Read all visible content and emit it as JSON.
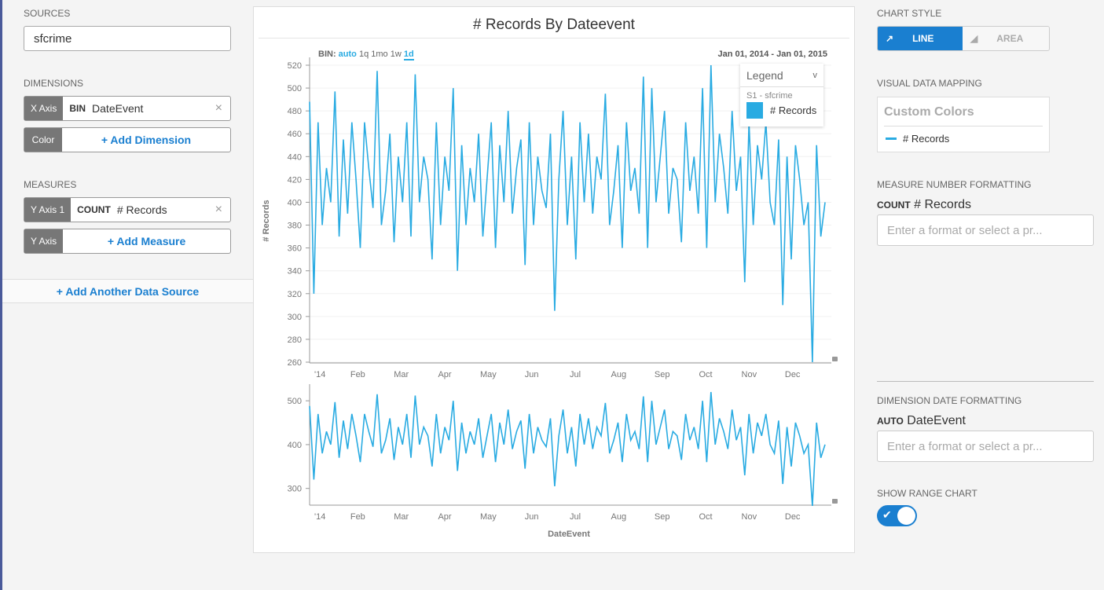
{
  "left": {
    "sources_label": "Sources",
    "source_value": "sfcrime",
    "dimensions_label": "Dimensions",
    "x_axis_tag": "X Axis",
    "x_axis_agg": "BIN",
    "x_axis_field": "DateEvent",
    "color_tag": "Color",
    "add_dimension": "+ Add Dimension",
    "measures_label": "Measures",
    "y_axis1_tag": "Y Axis 1",
    "y_axis1_agg": "COUNT",
    "y_axis1_field": "# Records",
    "y_axis_tag": "Y Axis",
    "add_measure": "+ Add Measure",
    "add_source": "+ Add Another Data Source",
    "remove_icon": "×"
  },
  "chart": {
    "title": "# Records By Dateevent",
    "bin_label": "BIN:",
    "bins": [
      "auto",
      "1q",
      "1mo",
      "1w",
      "1d"
    ],
    "date_start": "Jan 01, 2014",
    "date_sep": "-",
    "date_end": "Jan 01, 2015",
    "legend_title": "Legend",
    "legend_toggle": "v",
    "legend_source": "S1 - sfcrime",
    "legend_item": "# Records"
  },
  "right": {
    "chart_style_label": "Chart Style",
    "line": "LINE",
    "area": "AREA",
    "vdm_label": "Visual Data Mapping",
    "custom_colors": "Custom Colors",
    "mapping_item": "# Records",
    "mnf_label": "Measure Number Formatting",
    "mnf_agg": "COUNT",
    "mnf_field": "# Records",
    "format_placeholder": "Enter a format or select a pr...",
    "ddf_label": "Dimension Date Formatting",
    "ddf_agg": "AUTO",
    "ddf_field": "DateEvent",
    "range_label": "Show Range Chart",
    "range_on": true
  },
  "colors": {
    "accent": "#1a7fd0",
    "series": "#29abe2"
  },
  "chart_data": {
    "type": "line",
    "title": "# Records By Dateevent",
    "xlabel": "DateEvent",
    "ylabel": "# Records",
    "ylim": [
      260,
      520
    ],
    "range_ylim": [
      260,
      520
    ],
    "yticks": [
      260,
      280,
      300,
      320,
      340,
      360,
      380,
      400,
      420,
      440,
      460,
      480,
      500,
      520
    ],
    "range_yticks": [
      300,
      400,
      500
    ],
    "xticks": [
      "'14",
      "Feb",
      "Mar",
      "Apr",
      "May",
      "Jun",
      "Jul",
      "Aug",
      "Sep",
      "Oct",
      "Nov",
      "Dec"
    ],
    "series": [
      {
        "name": "# Records",
        "values": [
          488,
          320,
          470,
          380,
          430,
          400,
          497,
          370,
          455,
          390,
          470,
          420,
          360,
          470,
          430,
          395,
          515,
          380,
          410,
          460,
          365,
          440,
          400,
          470,
          370,
          512,
          400,
          440,
          420,
          350,
          470,
          380,
          440,
          410,
          500,
          340,
          450,
          380,
          430,
          400,
          460,
          370,
          420,
          470,
          360,
          450,
          400,
          480,
          390,
          430,
          455,
          345,
          470,
          380,
          440,
          410,
          395,
          460,
          305,
          420,
          480,
          380,
          440,
          350,
          470,
          400,
          460,
          390,
          440,
          420,
          495,
          380,
          410,
          450,
          360,
          470,
          410,
          430,
          390,
          510,
          360,
          500,
          400,
          440,
          480,
          390,
          430,
          420,
          365,
          470,
          410,
          440,
          390,
          500,
          360,
          520,
          400,
          460,
          430,
          390,
          480,
          410,
          440,
          330,
          470,
          380,
          450,
          420,
          470,
          400,
          380,
          455,
          310,
          440,
          350,
          450,
          420,
          380,
          400,
          260,
          450,
          370,
          400
        ]
      }
    ]
  }
}
